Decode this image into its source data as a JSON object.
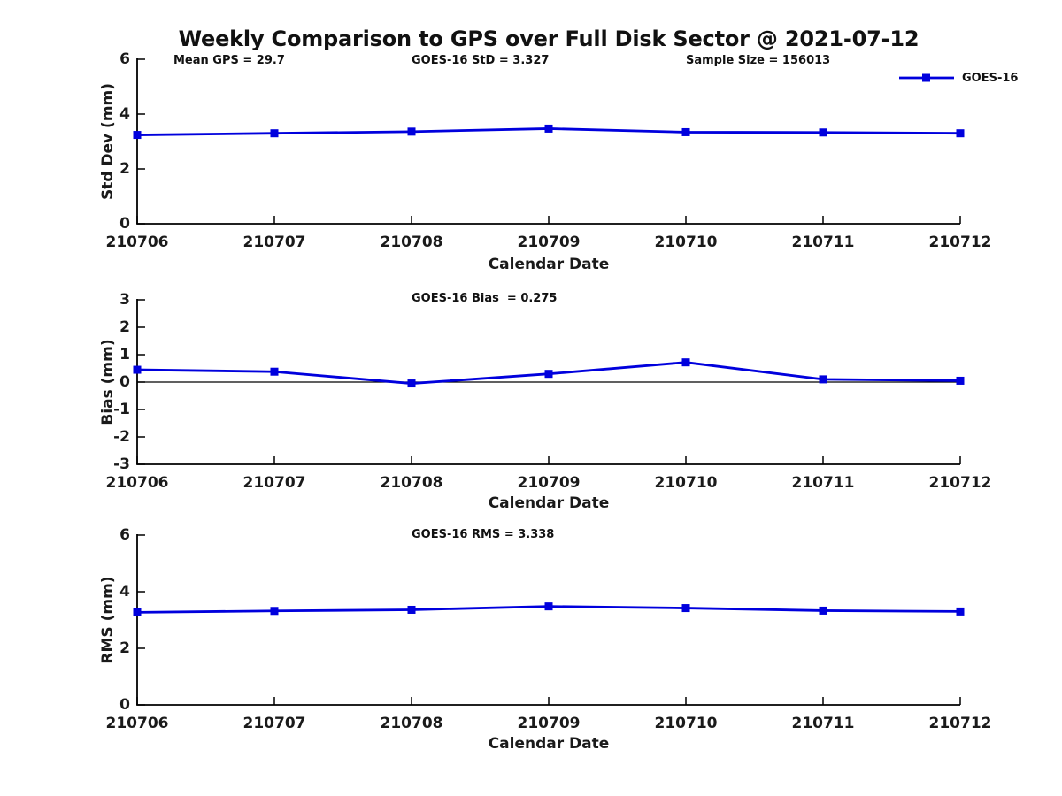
{
  "title": "Weekly Comparison to GPS over Full Disk Sector @ 2021-07-12",
  "colors": {
    "series": "#0000dd",
    "axis": "#000000",
    "text": "#1a1a1a"
  },
  "legend": {
    "label": "GOES-16"
  },
  "chart_data": [
    {
      "type": "line",
      "panel": "std_dev",
      "x": [
        "210706",
        "210707",
        "210708",
        "210709",
        "210710",
        "210711",
        "210712"
      ],
      "series": [
        {
          "name": "GOES-16",
          "color": "#0000dd",
          "marker": "square",
          "values": [
            3.24,
            3.3,
            3.36,
            3.47,
            3.34,
            3.33,
            3.3
          ]
        }
      ],
      "xlabel": "Calendar Date",
      "ylabel": "Std Dev (mm)",
      "ylim": [
        0,
        6
      ],
      "yticks": [
        0,
        2,
        4,
        6
      ],
      "grid": false,
      "zero_line": false,
      "legend_position": "top-right",
      "annotations": [
        {
          "text": "Mean GPS = 29.7"
        },
        {
          "text": "GOES-16 StD = 3.327"
        },
        {
          "text": "Sample Size = 156013"
        }
      ]
    },
    {
      "type": "line",
      "panel": "bias",
      "x": [
        "210706",
        "210707",
        "210708",
        "210709",
        "210710",
        "210711",
        "210712"
      ],
      "series": [
        {
          "name": "GOES-16",
          "color": "#0000dd",
          "marker": "square",
          "values": [
            0.45,
            0.38,
            -0.05,
            0.3,
            0.72,
            0.1,
            0.05
          ]
        }
      ],
      "xlabel": "Calendar Date",
      "ylabel": "Bias (mm)",
      "ylim": [
        -3,
        3
      ],
      "yticks": [
        -3,
        -2,
        -1,
        0,
        1,
        2,
        3
      ],
      "grid": false,
      "zero_line": true,
      "annotations": [
        {
          "text": "GOES-16 Bias  = 0.275"
        }
      ]
    },
    {
      "type": "line",
      "panel": "rms",
      "x": [
        "210706",
        "210707",
        "210708",
        "210709",
        "210710",
        "210711",
        "210712"
      ],
      "series": [
        {
          "name": "GOES-16",
          "color": "#0000dd",
          "marker": "square",
          "values": [
            3.27,
            3.32,
            3.36,
            3.48,
            3.42,
            3.33,
            3.3
          ]
        }
      ],
      "xlabel": "Calendar Date",
      "ylabel": "RMS (mm)",
      "ylim": [
        0,
        6
      ],
      "yticks": [
        0,
        2,
        4,
        6
      ],
      "grid": false,
      "zero_line": false,
      "annotations": [
        {
          "text": "GOES-16 RMS = 3.338"
        }
      ]
    }
  ]
}
